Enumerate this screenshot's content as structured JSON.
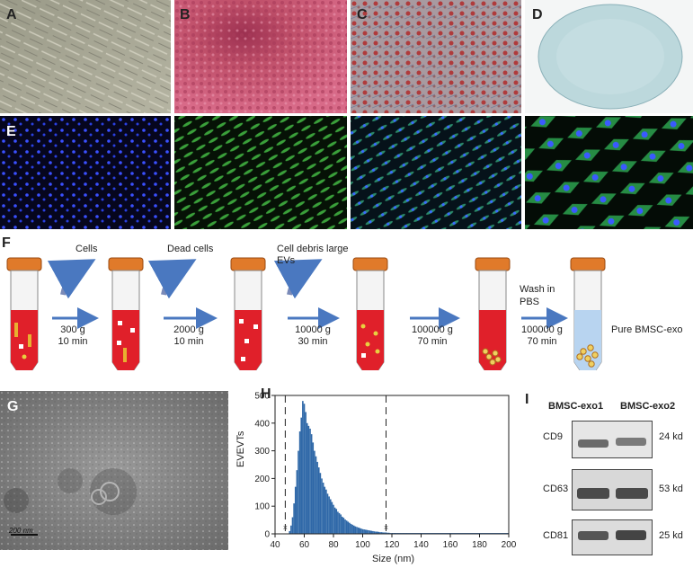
{
  "panels": {
    "a": "A",
    "b": "B",
    "c": "C",
    "d": "D",
    "e": "E",
    "f": "F",
    "g": "G",
    "h": "H",
    "i": "I"
  },
  "workflow": {
    "removed_labels": [
      "Cells",
      "Dead cells",
      "Cell debris large EVs"
    ],
    "wash_label": "Wash in PBS",
    "steps": [
      {
        "speed": "300 g",
        "time": "10 min"
      },
      {
        "speed": "2000 g",
        "time": "10 min"
      },
      {
        "speed": "10000 g",
        "time": "30 min"
      },
      {
        "speed": "100000 g",
        "time": "70 min"
      },
      {
        "speed": "100000 g",
        "time": "70 min"
      }
    ],
    "final_label": "Pure BMSC-exo"
  },
  "tem": {
    "scale_bar": "200 nm"
  },
  "western": {
    "columns": [
      "BMSC-exo1",
      "BMSC-exo2"
    ],
    "rows": [
      {
        "marker": "CD9",
        "size": "24 kd"
      },
      {
        "marker": "CD63",
        "size": "53 kd"
      },
      {
        "marker": "CD81",
        "size": "25 kd"
      }
    ]
  },
  "colors": {
    "bar": "#2f68a8",
    "tube_red": "#e0202a",
    "cap": "#e07a2a",
    "arrow": "#4a78c0"
  },
  "chart_data": {
    "type": "bar",
    "xlabel": "Size (nm)",
    "ylabel": "EVEVTs",
    "xlim": [
      40,
      200
    ],
    "ylim": [
      0,
      500
    ],
    "xticks": [
      "40",
      "60",
      "80",
      "100",
      "120",
      "140",
      "160",
      "180",
      "200"
    ],
    "yticks": [
      "0",
      "100",
      "200",
      "300",
      "400",
      "500"
    ],
    "grid": false,
    "vlines": [
      47,
      116
    ],
    "bin_width": 1,
    "x": [
      50,
      51,
      52,
      53,
      54,
      55,
      56,
      57,
      58,
      59,
      60,
      61,
      62,
      63,
      64,
      65,
      66,
      67,
      68,
      69,
      70,
      71,
      72,
      73,
      74,
      75,
      76,
      77,
      78,
      79,
      80,
      81,
      82,
      83,
      84,
      85,
      86,
      87,
      88,
      89,
      90,
      91,
      92,
      93,
      94,
      95,
      96,
      97,
      98,
      99,
      100,
      101,
      102,
      103,
      104,
      105,
      106,
      107,
      108,
      109,
      110,
      111,
      112,
      113,
      114,
      115,
      116,
      117,
      118,
      119,
      120,
      122,
      124,
      126,
      128,
      130
    ],
    "values": [
      10,
      30,
      60,
      110,
      170,
      230,
      300,
      370,
      420,
      480,
      470,
      440,
      400,
      390,
      380,
      360,
      330,
      300,
      280,
      260,
      240,
      220,
      200,
      185,
      170,
      160,
      145,
      135,
      125,
      115,
      105,
      95,
      90,
      80,
      75,
      70,
      62,
      58,
      52,
      48,
      44,
      40,
      36,
      33,
      30,
      27,
      25,
      23,
      21,
      19,
      17,
      16,
      15,
      14,
      13,
      12,
      11,
      10,
      9,
      8,
      8,
      7,
      6,
      6,
      5,
      5,
      5,
      4,
      4,
      3,
      3,
      3,
      2,
      2,
      2,
      2
    ]
  }
}
